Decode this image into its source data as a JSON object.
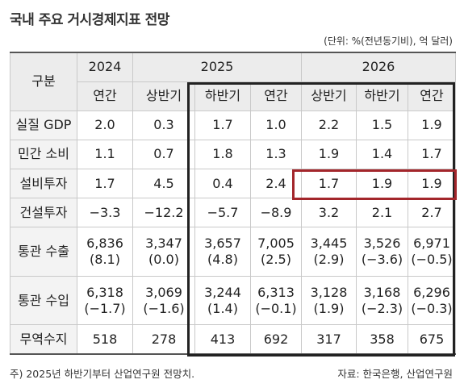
{
  "title": "국내 주요 거시경제지표 전망",
  "unit_note": "(단위: %(전년동기비), 억 달러)",
  "header": {
    "category": "구분",
    "years": [
      "2024",
      "2025",
      "2026"
    ],
    "periods": [
      "연간",
      "상반기",
      "하반기",
      "연간",
      "상반기",
      "하반기",
      "연간"
    ]
  },
  "rows": [
    {
      "label": "실질 GDP",
      "values": [
        [
          "2.0"
        ],
        [
          "0.3"
        ],
        [
          "1.7"
        ],
        [
          "1.0"
        ],
        [
          "2.2"
        ],
        [
          "1.5"
        ],
        [
          "1.9"
        ]
      ]
    },
    {
      "label": "민간 소비",
      "values": [
        [
          "1.1"
        ],
        [
          "0.7"
        ],
        [
          "1.8"
        ],
        [
          "1.3"
        ],
        [
          "1.9"
        ],
        [
          "1.4"
        ],
        [
          "1.7"
        ]
      ]
    },
    {
      "label": "설비투자",
      "values": [
        [
          "1.7"
        ],
        [
          "4.5"
        ],
        [
          "0.4"
        ],
        [
          "2.4"
        ],
        [
          "1.7"
        ],
        [
          "1.9"
        ],
        [
          "1.9"
        ]
      ]
    },
    {
      "label": "건설투자",
      "values": [
        [
          "−3.3"
        ],
        [
          "−12.2"
        ],
        [
          "−5.7"
        ],
        [
          "−8.9"
        ],
        [
          "3.2"
        ],
        [
          "2.1"
        ],
        [
          "2.7"
        ]
      ]
    },
    {
      "label": "통관 수출",
      "values": [
        [
          "6,836",
          "(8.1)"
        ],
        [
          "3,347",
          "(0.0)"
        ],
        [
          "3,657",
          "(4.8)"
        ],
        [
          "7,005",
          "(2.5)"
        ],
        [
          "3,445",
          "(2.9)"
        ],
        [
          "3,526",
          "(−3.6)"
        ],
        [
          "6,971",
          "(−0.5)"
        ]
      ]
    },
    {
      "label": "통관 수입",
      "values": [
        [
          "6,318",
          "(−1.7)"
        ],
        [
          "3,069",
          "(−1.6)"
        ],
        [
          "3,244",
          "(1.4)"
        ],
        [
          "6,313",
          "(−0.1)"
        ],
        [
          "3,128",
          "(1.9)"
        ],
        [
          "3,168",
          "(−2.3)"
        ],
        [
          "6,296",
          "(−0.3)"
        ]
      ]
    },
    {
      "label": "무역수지",
      "values": [
        [
          "518"
        ],
        [
          "278"
        ],
        [
          "413"
        ],
        [
          "692"
        ],
        [
          "317"
        ],
        [
          "358"
        ],
        [
          "675"
        ]
      ]
    }
  ],
  "footnote": "주) 2025년 하반기부터 산업연구원 전망치.",
  "source": "자료: 한국은행, 산업연구원",
  "colors": {
    "highlight_box": "#222222",
    "highlight_red": "#a3262b",
    "header_bg": "#ececec"
  }
}
